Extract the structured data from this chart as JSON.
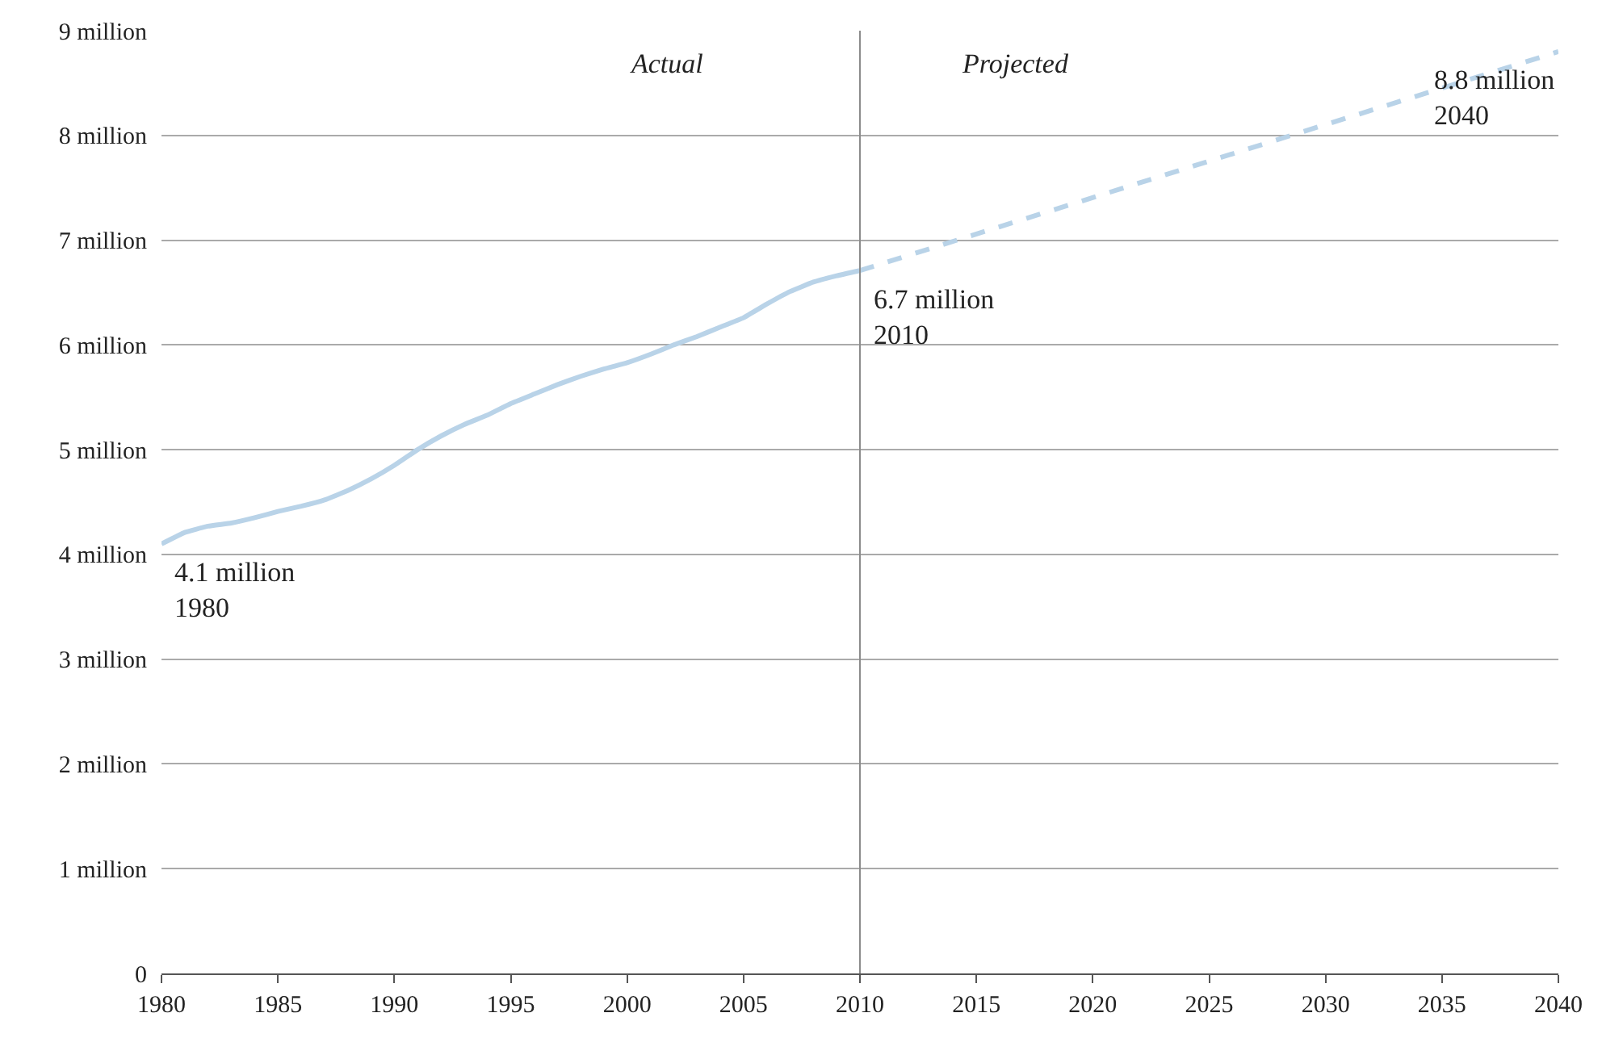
{
  "chart_data": {
    "type": "line",
    "series": [
      {
        "color": "#b9d3e8",
        "line_style": "solid",
        "x": [
          1980,
          1981,
          1982,
          1983,
          1984,
          1985,
          1986,
          1987,
          1988,
          1989,
          1990,
          1991,
          1992,
          1993,
          1994,
          1995,
          1996,
          1997,
          1998,
          1999,
          2000,
          2001,
          2002,
          2003,
          2004,
          2005,
          2006,
          2007,
          2008,
          2009,
          2010
        ],
        "values": [
          4.1,
          4.21,
          4.27,
          4.3,
          4.35,
          4.41,
          4.46,
          4.52,
          4.61,
          4.72,
          4.85,
          5.0,
          5.13,
          5.24,
          5.33,
          5.44,
          5.53,
          5.62,
          5.7,
          5.77,
          5.83,
          5.91,
          6.0,
          6.08,
          6.17,
          6.26,
          6.39,
          6.51,
          6.6,
          6.66,
          6.71
        ]
      },
      {
        "color": "#b9d3e8",
        "line_style": "dashed",
        "x": [
          2010,
          2040
        ],
        "values": [
          6.71,
          8.8
        ]
      }
    ],
    "xlim": [
      1980,
      2040
    ],
    "xticks": [
      1980,
      1985,
      1990,
      1995,
      2000,
      2005,
      2010,
      2015,
      2020,
      2025,
      2030,
      2035,
      2040
    ],
    "ylim": [
      0,
      9
    ],
    "yticks": [
      0,
      {
        "value": 1,
        "label": "1 million"
      },
      {
        "value": 2,
        "label": "2 million"
      },
      {
        "value": 3,
        "label": "3 million"
      },
      {
        "value": 4,
        "label": "4 million"
      },
      {
        "value": 5,
        "label": "5 million"
      },
      {
        "value": 6,
        "label": "6 million"
      },
      {
        "value": 7,
        "label": "7 million"
      },
      {
        "value": 8,
        "label": "8 million"
      },
      {
        "value": 9,
        "label": "9 million"
      }
    ],
    "grid": "y",
    "marker": "none",
    "ref_lines": [
      {
        "axis": "x",
        "value": 2010,
        "color": "#8c8c8c"
      }
    ],
    "annotations": [
      "Actual",
      "Projected",
      {
        "text": "4.1 million\n1980",
        "x": 1980,
        "y": 4.1
      },
      {
        "text": "6.7 million\n2010",
        "x": 2010,
        "y": 6.71
      },
      {
        "text": "8.8 million\n2040",
        "x": 2040,
        "y": 8.8
      }
    ]
  }
}
